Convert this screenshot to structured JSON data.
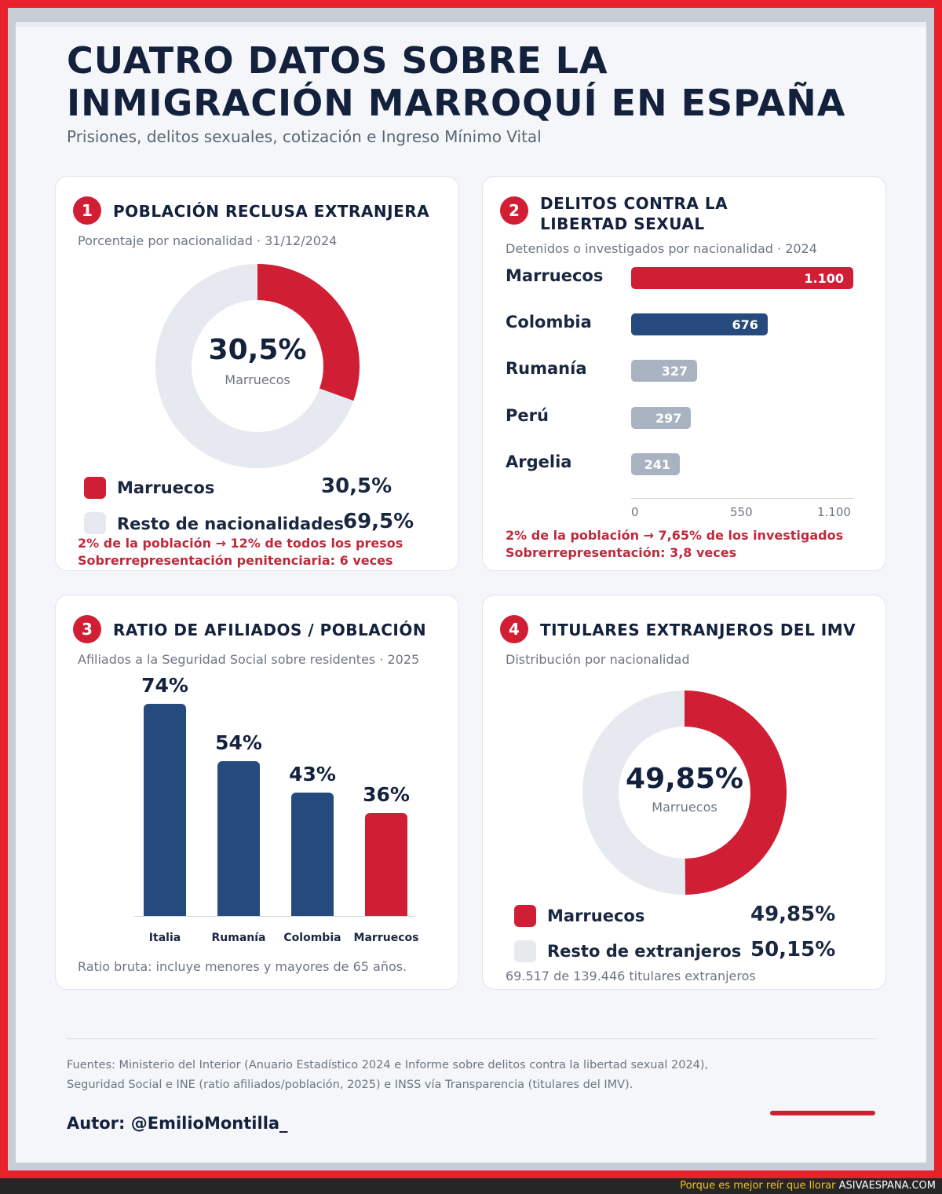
{
  "header": {
    "title_line1": "CUATRO DATOS SOBRE LA",
    "title_line2": "INMIGRACIÓN MARROQUÍ EN ESPAÑA",
    "subtitle": "Prisiones, delitos sexuales, cotización e Ingreso Mínimo Vital"
  },
  "cards": {
    "c1": {
      "number": "1",
      "title": "POBLACIÓN RECLUSA EXTRANJERA",
      "subtitle": "Porcentaje por nacionalidad · 31/12/2024",
      "center_value": "30,5%",
      "center_label": "Marruecos",
      "legend": [
        {
          "label": "Marruecos",
          "value": "30,5%"
        },
        {
          "label": "Resto de nacionalidades",
          "value": "69,5%"
        }
      ],
      "note1": "2% de la población → 12% de todos los presos",
      "note2": "Sobrerrepresentación penitenciaria: 6 veces"
    },
    "c2": {
      "number": "2",
      "title_line1": "DELITOS CONTRA LA",
      "title_line2": "LIBERTAD SEXUAL",
      "subtitle": "Detenidos o investigados por nacionalidad · 2024",
      "bars": [
        {
          "label": "Marruecos",
          "value_label": "1.100"
        },
        {
          "label": "Colombia",
          "value_label": "676"
        },
        {
          "label": "Rumanía",
          "value_label": "327"
        },
        {
          "label": "Perú",
          "value_label": "297"
        },
        {
          "label": "Argelia",
          "value_label": "241"
        }
      ],
      "ticks": [
        "0",
        "550",
        "1.100"
      ],
      "note1": "2% de la población → 7,65% de los investigados",
      "note2": "Sobrerrepresentación: 3,8 veces"
    },
    "c3": {
      "number": "3",
      "title": "RATIO DE AFILIADOS / POBLACIÓN",
      "subtitle": "Afiliados a la Seguridad Social sobre residentes · 2025",
      "bars": [
        {
          "label": "Italia",
          "value_label": "74%"
        },
        {
          "label": "Rumanía",
          "value_label": "54%"
        },
        {
          "label": "Colombia",
          "value_label": "43%"
        },
        {
          "label": "Marruecos",
          "value_label": "36%"
        }
      ],
      "note": "Ratio bruta: incluye menores y mayores de 65 años."
    },
    "c4": {
      "number": "4",
      "title": "TITULARES EXTRANJEROS DEL IMV",
      "subtitle": "Distribución por nacionalidad",
      "center_value": "49,85%",
      "center_label": "Marruecos",
      "legend": [
        {
          "label": "Marruecos",
          "value": "49,85%"
        },
        {
          "label": "Resto de extranjeros",
          "value": "50,15%"
        }
      ],
      "note": "69.517 de 139.446 titulares extranjeros"
    }
  },
  "footer": {
    "sources_line1": "Fuentes: Ministerio del Interior (Anuario Estadístico 2024 e Informe sobre delitos contra la libertad sexual 2024),",
    "sources_line2": "Seguridad Social e INE (ratio afiliados/población, 2025) e INSS vía Transparencia (titulares del IMV).",
    "author": "Autor: @EmilioMontilla_",
    "watermark_text": "Porque es mejor reír que llorar",
    "watermark_site": "ASIVAESPANA.COM"
  },
  "colors": {
    "red": "#d01f35",
    "navy": "#254a7d",
    "grey": "#a9b2c1",
    "light": "#e6eaf0"
  },
  "chart_data": [
    {
      "type": "pie",
      "title": "POBLACIÓN RECLUSA EXTRANJERA",
      "categories": [
        "Marruecos",
        "Resto de nacionalidades"
      ],
      "values": [
        30.5,
        69.5
      ]
    },
    {
      "type": "bar",
      "title": "DELITOS CONTRA LA LIBERTAD SEXUAL",
      "orientation": "horizontal",
      "categories": [
        "Marruecos",
        "Colombia",
        "Rumanía",
        "Perú",
        "Argelia"
      ],
      "values": [
        1100,
        676,
        327,
        297,
        241
      ],
      "xlim": [
        0,
        1100
      ]
    },
    {
      "type": "bar",
      "title": "RATIO DE AFILIADOS / POBLACIÓN",
      "categories": [
        "Italia",
        "Rumanía",
        "Colombia",
        "Marruecos"
      ],
      "values": [
        74,
        54,
        43,
        36
      ],
      "ylim": [
        0,
        80
      ]
    },
    {
      "type": "pie",
      "title": "TITULARES EXTRANJEROS DEL IMV",
      "categories": [
        "Marruecos",
        "Resto de extranjeros"
      ],
      "values": [
        49.85,
        50.15
      ]
    }
  ]
}
